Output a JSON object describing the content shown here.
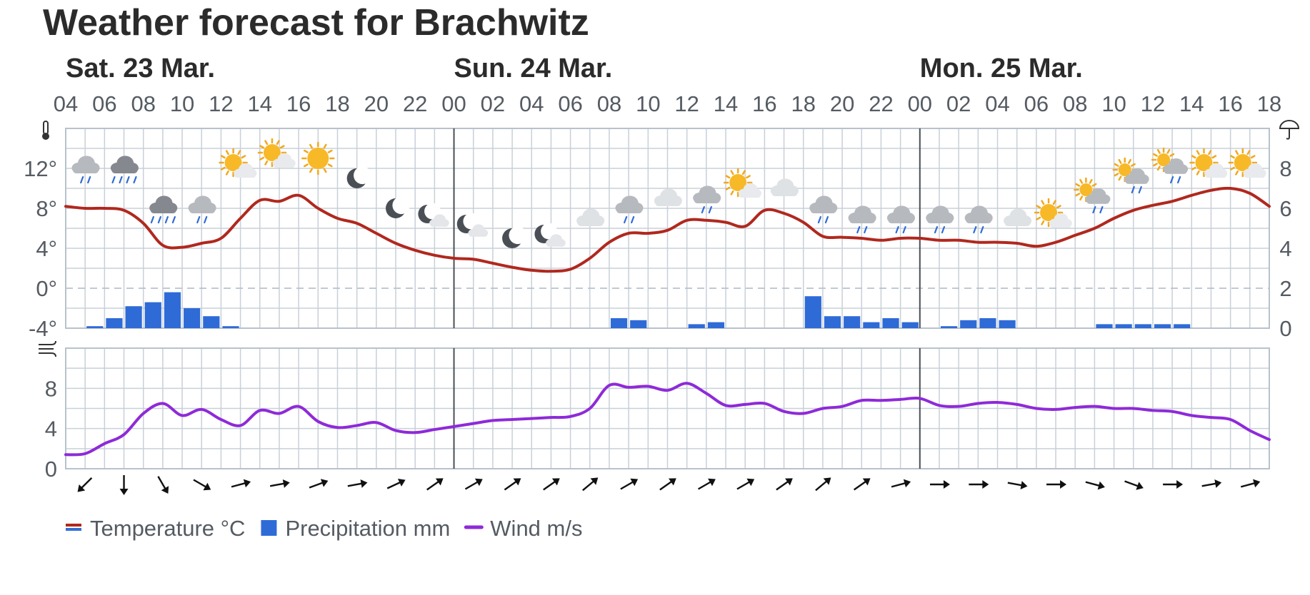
{
  "title": "Weather forecast for Brachwitz",
  "legend": [
    {
      "label": "Temperature °C",
      "color": "#b0281e",
      "color2": "#3370d4",
      "kind": "temp"
    },
    {
      "label": "Precipitation mm",
      "color": "#2f6bd6",
      "kind": "bar"
    },
    {
      "label": "Wind m/s",
      "color": "#8e2ad8",
      "kind": "line"
    }
  ],
  "icons": {
    "temperature": "thermometer-icon",
    "precipitation": "umbrella-icon",
    "wind": "wind-icon"
  },
  "chart_data": {
    "type": "line",
    "hour_start": 4,
    "hour_end": 66,
    "days": [
      {
        "label": "Sat. 23 Mar.",
        "at_hour": 4
      },
      {
        "label": "Sun. 24 Mar.",
        "at_hour": 24
      },
      {
        "label": "Mon. 25 Mar.",
        "at_hour": 48
      }
    ],
    "hour_ticks": [
      "04",
      "06",
      "08",
      "10",
      "12",
      "14",
      "16",
      "18",
      "20",
      "22",
      "00",
      "02",
      "04",
      "06",
      "08",
      "10",
      "12",
      "14",
      "16",
      "18",
      "20",
      "22",
      "00",
      "02",
      "04",
      "06",
      "08",
      "10",
      "12",
      "14",
      "16",
      "18"
    ],
    "temp_axis": {
      "min": -4,
      "max": 16,
      "ticks": [
        -4,
        0,
        4,
        8,
        12
      ],
      "tick_labels": [
        "-4°",
        "0°",
        "4°",
        "8°",
        "12°"
      ]
    },
    "precip_axis": {
      "min": 0,
      "max": 10,
      "ticks": [
        0,
        2,
        4,
        6,
        8
      ],
      "tick_labels": [
        "0",
        "2",
        "4",
        "6",
        "8"
      ]
    },
    "wind_axis": {
      "min": 0,
      "max": 12,
      "ticks": [
        0,
        4,
        8
      ],
      "tick_labels": [
        "0",
        "4",
        "8"
      ]
    },
    "series": [
      {
        "name": "Temperature °C",
        "kind": "temperature",
        "color": "#b0281e",
        "points": [
          [
            4,
            8.2
          ],
          [
            5,
            8.0
          ],
          [
            6,
            8.0
          ],
          [
            7,
            7.8
          ],
          [
            8,
            6.5
          ],
          [
            9,
            4.3
          ],
          [
            10,
            4.1
          ],
          [
            11,
            4.5
          ],
          [
            12,
            5.0
          ],
          [
            13,
            7.0
          ],
          [
            14,
            8.8
          ],
          [
            15,
            8.7
          ],
          [
            16,
            9.3
          ],
          [
            17,
            8.0
          ],
          [
            18,
            7.0
          ],
          [
            19,
            6.5
          ],
          [
            20,
            5.5
          ],
          [
            21,
            4.5
          ],
          [
            22,
            3.8
          ],
          [
            23,
            3.3
          ],
          [
            24,
            3.0
          ],
          [
            25,
            2.9
          ],
          [
            26,
            2.5
          ],
          [
            27,
            2.1
          ],
          [
            28,
            1.8
          ],
          [
            29,
            1.7
          ],
          [
            30,
            1.9
          ],
          [
            31,
            3.0
          ],
          [
            32,
            4.6
          ],
          [
            33,
            5.5
          ],
          [
            34,
            5.5
          ],
          [
            35,
            5.8
          ],
          [
            36,
            6.8
          ],
          [
            37,
            6.8
          ],
          [
            38,
            6.6
          ],
          [
            39,
            6.2
          ],
          [
            40,
            7.8
          ],
          [
            41,
            7.5
          ],
          [
            42,
            6.6
          ],
          [
            43,
            5.2
          ],
          [
            44,
            5.1
          ],
          [
            45,
            5.0
          ],
          [
            46,
            4.8
          ],
          [
            47,
            5.0
          ],
          [
            48,
            5.0
          ],
          [
            49,
            4.8
          ],
          [
            50,
            4.8
          ],
          [
            51,
            4.6
          ],
          [
            52,
            4.6
          ],
          [
            53,
            4.5
          ],
          [
            54,
            4.2
          ],
          [
            55,
            4.6
          ],
          [
            56,
            5.3
          ],
          [
            57,
            6.0
          ],
          [
            58,
            7.0
          ],
          [
            59,
            7.8
          ],
          [
            60,
            8.3
          ],
          [
            61,
            8.7
          ],
          [
            62,
            9.3
          ],
          [
            63,
            9.8
          ],
          [
            64,
            10.0
          ],
          [
            65,
            9.5
          ],
          [
            66,
            8.2
          ]
        ]
      },
      {
        "name": "Precipitation mm",
        "kind": "precipitation",
        "color": "#2f6bd6",
        "bars": [
          [
            5,
            0.1
          ],
          [
            6,
            0.5
          ],
          [
            7,
            1.1
          ],
          [
            8,
            1.3
          ],
          [
            9,
            1.8
          ],
          [
            10,
            1.0
          ],
          [
            11,
            0.6
          ],
          [
            12,
            0.1
          ],
          [
            32,
            0.5
          ],
          [
            33,
            0.4
          ],
          [
            36,
            0.2
          ],
          [
            37,
            0.3
          ],
          [
            42,
            1.6
          ],
          [
            43,
            0.6
          ],
          [
            44,
            0.6
          ],
          [
            45,
            0.3
          ],
          [
            46,
            0.5
          ],
          [
            47,
            0.3
          ],
          [
            49,
            0.1
          ],
          [
            50,
            0.4
          ],
          [
            51,
            0.5
          ],
          [
            52,
            0.4
          ],
          [
            57,
            0.2
          ],
          [
            58,
            0.2
          ],
          [
            59,
            0.2
          ],
          [
            60,
            0.2
          ],
          [
            61,
            0.2
          ]
        ]
      },
      {
        "name": "Wind m/s",
        "kind": "wind",
        "color": "#8e2ad8",
        "points": [
          [
            4,
            1.4
          ],
          [
            5,
            1.5
          ],
          [
            6,
            2.5
          ],
          [
            7,
            3.4
          ],
          [
            8,
            5.5
          ],
          [
            9,
            6.5
          ],
          [
            10,
            5.3
          ],
          [
            11,
            5.9
          ],
          [
            12,
            4.9
          ],
          [
            13,
            4.3
          ],
          [
            14,
            5.8
          ],
          [
            15,
            5.5
          ],
          [
            16,
            6.2
          ],
          [
            17,
            4.7
          ],
          [
            18,
            4.1
          ],
          [
            19,
            4.3
          ],
          [
            20,
            4.6
          ],
          [
            21,
            3.8
          ],
          [
            22,
            3.6
          ],
          [
            23,
            3.9
          ],
          [
            24,
            4.2
          ],
          [
            25,
            4.5
          ],
          [
            26,
            4.8
          ],
          [
            27,
            4.9
          ],
          [
            28,
            5.0
          ],
          [
            29,
            5.1
          ],
          [
            30,
            5.2
          ],
          [
            31,
            6.0
          ],
          [
            32,
            8.3
          ],
          [
            33,
            8.1
          ],
          [
            34,
            8.2
          ],
          [
            35,
            7.8
          ],
          [
            36,
            8.5
          ],
          [
            37,
            7.5
          ],
          [
            38,
            6.3
          ],
          [
            39,
            6.4
          ],
          [
            40,
            6.5
          ],
          [
            41,
            5.7
          ],
          [
            42,
            5.5
          ],
          [
            43,
            6.0
          ],
          [
            44,
            6.2
          ],
          [
            45,
            6.8
          ],
          [
            46,
            6.8
          ],
          [
            47,
            6.9
          ],
          [
            48,
            7.0
          ],
          [
            49,
            6.3
          ],
          [
            50,
            6.2
          ],
          [
            51,
            6.5
          ],
          [
            52,
            6.6
          ],
          [
            53,
            6.4
          ],
          [
            54,
            6.0
          ],
          [
            55,
            5.9
          ],
          [
            56,
            6.1
          ],
          [
            57,
            6.2
          ],
          [
            58,
            6.0
          ],
          [
            59,
            6.0
          ],
          [
            60,
            5.8
          ],
          [
            61,
            5.7
          ],
          [
            62,
            5.3
          ],
          [
            63,
            5.1
          ],
          [
            64,
            4.9
          ],
          [
            65,
            3.8
          ],
          [
            66,
            2.9
          ]
        ]
      }
    ],
    "wind_directions": [
      {
        "hour": 5,
        "deg": 45
      },
      {
        "hour": 7,
        "deg": 0
      },
      {
        "hour": 9,
        "deg": -30
      },
      {
        "hour": 11,
        "deg": -60
      },
      {
        "hour": 13,
        "deg": -105
      },
      {
        "hour": 15,
        "deg": -100
      },
      {
        "hour": 17,
        "deg": -110
      },
      {
        "hour": 19,
        "deg": -100
      },
      {
        "hour": 21,
        "deg": -115
      },
      {
        "hour": 23,
        "deg": -125
      },
      {
        "hour": 25,
        "deg": -120
      },
      {
        "hour": 27,
        "deg": -125
      },
      {
        "hour": 29,
        "deg": -125
      },
      {
        "hour": 31,
        "deg": -130
      },
      {
        "hour": 33,
        "deg": -120
      },
      {
        "hour": 35,
        "deg": -125
      },
      {
        "hour": 37,
        "deg": -120
      },
      {
        "hour": 39,
        "deg": -120
      },
      {
        "hour": 41,
        "deg": -125
      },
      {
        "hour": 43,
        "deg": -130
      },
      {
        "hour": 45,
        "deg": -125
      },
      {
        "hour": 47,
        "deg": -105
      },
      {
        "hour": 49,
        "deg": -90
      },
      {
        "hour": 51,
        "deg": -90
      },
      {
        "hour": 53,
        "deg": -80
      },
      {
        "hour": 55,
        "deg": -90
      },
      {
        "hour": 57,
        "deg": -75
      },
      {
        "hour": 59,
        "deg": -70
      },
      {
        "hour": 61,
        "deg": -90
      },
      {
        "hour": 63,
        "deg": -100
      },
      {
        "hour": 65,
        "deg": -105
      }
    ],
    "weather_symbols": [
      {
        "hour": 5,
        "icon": "cloud-light-rain-icon",
        "tempAt": 12
      },
      {
        "hour": 7,
        "icon": "dark-cloud-rain-icon",
        "tempAt": 12
      },
      {
        "hour": 9,
        "icon": "dark-cloud-rain-icon",
        "tempAt": 8
      },
      {
        "hour": 11,
        "icon": "cloud-light-rain-icon",
        "tempAt": 8
      },
      {
        "hour": 13,
        "icon": "sun-cloud-icon",
        "tempAt": 12
      },
      {
        "hour": 15,
        "icon": "sun-cloud-icon",
        "tempAt": 13
      },
      {
        "hour": 17,
        "icon": "sun-icon",
        "tempAt": 13
      },
      {
        "hour": 19,
        "icon": "moon-icon",
        "tempAt": 11
      },
      {
        "hour": 21,
        "icon": "moon-icon",
        "tempAt": 8
      },
      {
        "hour": 23,
        "icon": "moon-cloud-icon",
        "tempAt": 7
      },
      {
        "hour": 25,
        "icon": "moon-cloud-icon",
        "tempAt": 6
      },
      {
        "hour": 27,
        "icon": "moon-icon",
        "tempAt": 5
      },
      {
        "hour": 29,
        "icon": "moon-cloud-icon",
        "tempAt": 5
      },
      {
        "hour": 31,
        "icon": "cloud-icon",
        "tempAt": 7
      },
      {
        "hour": 33,
        "icon": "cloud-light-rain-icon",
        "tempAt": 8
      },
      {
        "hour": 35,
        "icon": "cloud-icon",
        "tempAt": 9
      },
      {
        "hour": 37,
        "icon": "cloud-light-rain-icon",
        "tempAt": 9
      },
      {
        "hour": 39,
        "icon": "sun-cloud-icon",
        "tempAt": 10
      },
      {
        "hour": 41,
        "icon": "cloud-icon",
        "tempAt": 10
      },
      {
        "hour": 43,
        "icon": "cloud-light-rain-icon",
        "tempAt": 8
      },
      {
        "hour": 45,
        "icon": "cloud-light-rain-icon",
        "tempAt": 7
      },
      {
        "hour": 47,
        "icon": "cloud-light-rain-icon",
        "tempAt": 7
      },
      {
        "hour": 49,
        "icon": "cloud-light-rain-icon",
        "tempAt": 7
      },
      {
        "hour": 51,
        "icon": "cloud-light-rain-icon",
        "tempAt": 7
      },
      {
        "hour": 53,
        "icon": "cloud-icon",
        "tempAt": 7
      },
      {
        "hour": 55,
        "icon": "sun-cloud-icon",
        "tempAt": 7
      },
      {
        "hour": 57,
        "icon": "sun-cloud-light-rain-icon",
        "tempAt": 9
      },
      {
        "hour": 59,
        "icon": "sun-cloud-light-rain-icon",
        "tempAt": 11
      },
      {
        "hour": 61,
        "icon": "sun-cloud-light-rain-icon",
        "tempAt": 12
      },
      {
        "hour": 63,
        "icon": "sun-cloud-icon",
        "tempAt": 12
      },
      {
        "hour": 65,
        "icon": "sun-cloud-icon",
        "tempAt": 12
      }
    ]
  }
}
